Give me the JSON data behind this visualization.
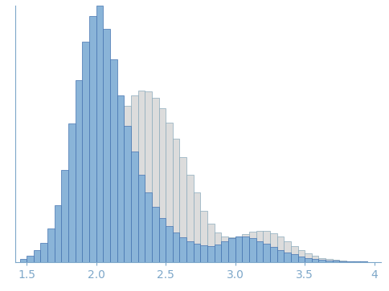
{
  "xlim": [
    1.42,
    4.05
  ],
  "ylim": [
    0,
    1.0
  ],
  "xticks": [
    1.5,
    2.0,
    2.5,
    3.0,
    3.5,
    4.0
  ],
  "background_color": "#ffffff",
  "tick_color": "#7da7c9",
  "axis_color": "#7da7c9",
  "tick_label_color": "#7da7c9",
  "bin_width": 0.05,
  "blue_face_color": "#8ab4d8",
  "blue_edge_color": "#4472b0",
  "gray_face_color": "#dcdcdc",
  "gray_edge_color": "#8aaabb",
  "blue_hist": {
    "bins": [
      1.45,
      1.5,
      1.55,
      1.6,
      1.65,
      1.7,
      1.75,
      1.8,
      1.85,
      1.9,
      1.95,
      2.0,
      2.05,
      2.1,
      2.15,
      2.2,
      2.25,
      2.3,
      2.35,
      2.4,
      2.45,
      2.5,
      2.55,
      2.6,
      2.65,
      2.7,
      2.75,
      2.8,
      2.85,
      2.9,
      2.95,
      3.0,
      3.05,
      3.1,
      3.15,
      3.2,
      3.25,
      3.3,
      3.35,
      3.4,
      3.45,
      3.5,
      3.55,
      3.6,
      3.65,
      3.7,
      3.75,
      3.8,
      3.85,
      3.9,
      3.95
    ],
    "counts": [
      0.012,
      0.025,
      0.045,
      0.075,
      0.13,
      0.22,
      0.36,
      0.54,
      0.71,
      0.86,
      0.96,
      1.0,
      0.91,
      0.79,
      0.65,
      0.53,
      0.43,
      0.34,
      0.27,
      0.215,
      0.17,
      0.14,
      0.115,
      0.095,
      0.08,
      0.07,
      0.065,
      0.063,
      0.068,
      0.08,
      0.092,
      0.1,
      0.098,
      0.092,
      0.082,
      0.07,
      0.058,
      0.047,
      0.037,
      0.029,
      0.022,
      0.016,
      0.012,
      0.008,
      0.006,
      0.004,
      0.003,
      0.002,
      0.001,
      0.001,
      0.0
    ]
  },
  "gray_hist": {
    "bins": [
      1.45,
      1.5,
      1.55,
      1.6,
      1.65,
      1.7,
      1.75,
      1.8,
      1.85,
      1.9,
      1.95,
      2.0,
      2.05,
      2.1,
      2.15,
      2.2,
      2.25,
      2.3,
      2.35,
      2.4,
      2.45,
      2.5,
      2.55,
      2.6,
      2.65,
      2.7,
      2.75,
      2.8,
      2.85,
      2.9,
      2.95,
      3.0,
      3.05,
      3.1,
      3.15,
      3.2,
      3.25,
      3.3,
      3.35,
      3.4,
      3.45,
      3.5,
      3.55,
      3.6,
      3.65,
      3.7,
      3.75,
      3.8,
      3.85,
      3.9,
      3.95
    ],
    "counts": [
      0.003,
      0.008,
      0.015,
      0.025,
      0.038,
      0.055,
      0.075,
      0.1,
      0.13,
      0.17,
      0.22,
      0.29,
      0.38,
      0.47,
      0.55,
      0.61,
      0.65,
      0.67,
      0.665,
      0.64,
      0.6,
      0.545,
      0.48,
      0.41,
      0.34,
      0.27,
      0.2,
      0.148,
      0.115,
      0.1,
      0.095,
      0.1,
      0.108,
      0.118,
      0.122,
      0.12,
      0.112,
      0.098,
      0.08,
      0.062,
      0.046,
      0.034,
      0.024,
      0.016,
      0.011,
      0.007,
      0.005,
      0.003,
      0.002,
      0.001,
      0.0
    ]
  }
}
